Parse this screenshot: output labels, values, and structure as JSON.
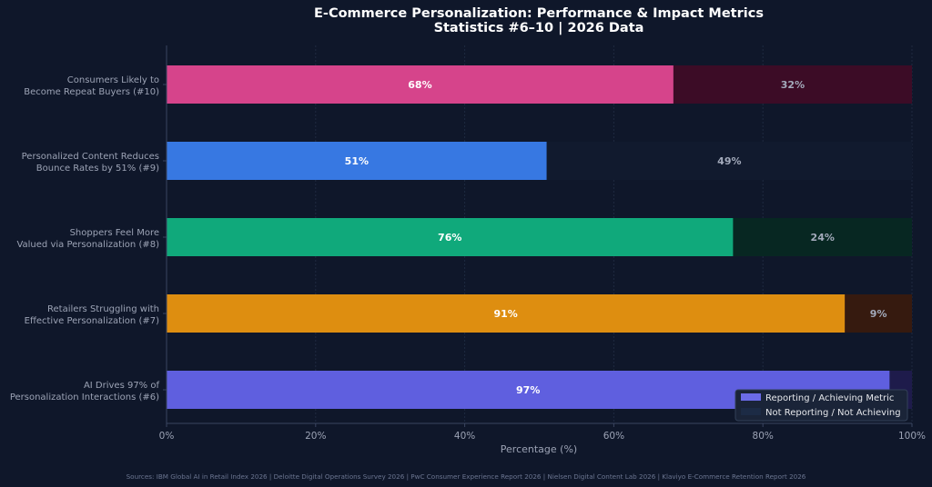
{
  "chart_data": {
    "type": "bar",
    "orientation": "horizontal",
    "stacked": true,
    "title": "E-Commerce Personalization: Performance & Impact Metrics",
    "subtitle": "Statistics #6–10 | 2026 Data",
    "xlabel": "Percentage (%)",
    "ylabel": "",
    "xlim": [
      0,
      100
    ],
    "xticks": [
      "0%",
      "20%",
      "40%",
      "60%",
      "80%",
      "100%"
    ],
    "xtick_values": [
      0,
      20,
      40,
      60,
      80,
      100
    ],
    "grid": true,
    "categories": [
      [
        "Consumers Likely to",
        "Become Repeat Buyers (#10)"
      ],
      [
        "Personalized Content Reduces",
        "Bounce Rates by 51% (#9)"
      ],
      [
        "Shoppers Feel More",
        "Valued via Personalization (#8)"
      ],
      [
        "Retailers Struggling with",
        "Effective Personalization (#7)"
      ],
      [
        "AI Drives 97% of",
        "Personalization Interactions (#6)"
      ]
    ],
    "series": [
      {
        "name": "Reporting / Achieving Metric",
        "values": [
          68,
          51,
          76,
          91,
          97
        ],
        "labels": [
          "68%",
          "51%",
          "76%",
          "91%",
          "97%"
        ],
        "colors": [
          "#d6448b",
          "#3778e2",
          "#10a97b",
          "#de8e10",
          "#5f5fdf"
        ]
      },
      {
        "name": "Not Reporting / Not Achieving",
        "values": [
          32,
          49,
          24,
          9,
          3
        ],
        "labels": [
          "32%",
          "49%",
          "24%",
          "9%",
          ""
        ],
        "colors": [
          "#3c0c26",
          "#111a2e",
          "#072722",
          "#361a0f",
          "#1e1b4b"
        ]
      }
    ],
    "legend": {
      "position": "bottom-right",
      "items": [
        "Reporting / Achieving Metric",
        "Not Reporting / Not Achieving"
      ],
      "swatch_colors": [
        "#6b6be8",
        "#1c2b45"
      ]
    },
    "footer": "Sources: IBM Global AI in Retail Index 2026 | Deloitte Digital Operations Survey 2026 | PwC Consumer Experience Report 2026 | Nielsen Digital Content Lab 2026 | Klaviyo E-Commerce Retention Report 2026"
  }
}
